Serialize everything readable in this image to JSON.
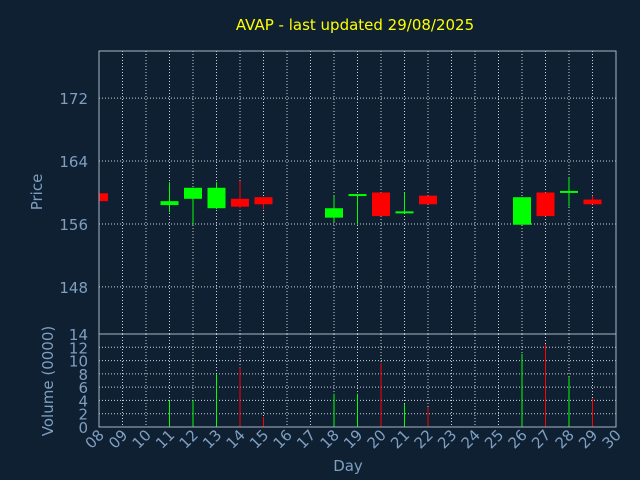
{
  "title": "AVAP - last updated 29/08/2025",
  "colors": {
    "background": "#0f2033",
    "title": "#ffff00",
    "axis_text": "#7f9fbf",
    "frame": "#aab4c0",
    "grid": "#ffffff",
    "up": "#00ff00",
    "down": "#ff0000"
  },
  "chart_data": [
    {
      "type": "candlestick",
      "ylabel": "Price",
      "ylim": [
        142,
        178
      ],
      "yticks": [
        "148",
        "156",
        "164",
        "172"
      ],
      "x_values": [
        8,
        9,
        10,
        11,
        12,
        13,
        14,
        15,
        16,
        17,
        18,
        19,
        20,
        21,
        22,
        23,
        24,
        25,
        26,
        27,
        28,
        29,
        30
      ],
      "grid": true,
      "candles": [
        {
          "day": 8,
          "open": 159.9,
          "close": 158.9,
          "high": 159.9,
          "low": 158.9
        },
        {
          "day": 11,
          "open": 158.4,
          "close": 158.9,
          "high": 161.3,
          "low": 157.5
        },
        {
          "day": 12,
          "open": 159.2,
          "close": 160.6,
          "high": 160.6,
          "low": 155.9
        },
        {
          "day": 13,
          "open": 158.0,
          "close": 160.6,
          "high": 161.3,
          "low": 157.9
        },
        {
          "day": 14,
          "open": 159.2,
          "close": 158.2,
          "high": 161.5,
          "low": 158.0
        },
        {
          "day": 15,
          "open": 159.4,
          "close": 158.5,
          "high": 159.4,
          "low": 157.9
        },
        {
          "day": 18,
          "open": 156.8,
          "close": 158.0,
          "high": 159.6,
          "low": 156.2
        },
        {
          "day": 19,
          "open": 159.6,
          "close": 159.8,
          "high": 159.8,
          "low": 155.9
        },
        {
          "day": 20,
          "open": 160.0,
          "close": 157.0,
          "high": 160.0,
          "low": 157.0
        },
        {
          "day": 21,
          "open": 157.4,
          "close": 157.6,
          "high": 160.0,
          "low": 157.4
        },
        {
          "day": 22,
          "open": 159.6,
          "close": 158.5,
          "high": 159.6,
          "low": 158.5
        },
        {
          "day": 26,
          "open": 155.9,
          "close": 159.4,
          "high": 159.4,
          "low": 155.9
        },
        {
          "day": 27,
          "open": 160.0,
          "close": 157.0,
          "high": 160.0,
          "low": 157.0
        },
        {
          "day": 28,
          "open": 160.0,
          "close": 160.2,
          "high": 161.9,
          "low": 158.2
        },
        {
          "day": 29,
          "open": 159.1,
          "close": 158.5,
          "high": 159.6,
          "low": 158.5
        }
      ]
    },
    {
      "type": "bar",
      "ylabel": "Volume (0000)",
      "ylim": [
        0,
        14
      ],
      "yticks": [
        "0",
        "2",
        "4",
        "6",
        "8",
        "10",
        "12",
        "14"
      ],
      "xlabel": "Day",
      "xticks": [
        "08",
        "09",
        "10",
        "11",
        "12",
        "13",
        "14",
        "15",
        "16",
        "17",
        "18",
        "19",
        "20",
        "21",
        "22",
        "23",
        "24",
        "25",
        "26",
        "27",
        "28",
        "29",
        "30"
      ],
      "grid": true,
      "bars": [
        {
          "day": 8,
          "value": 1.0,
          "dir": "down"
        },
        {
          "day": 11,
          "value": 4.0,
          "dir": "up"
        },
        {
          "day": 12,
          "value": 4.0,
          "dir": "up"
        },
        {
          "day": 13,
          "value": 8.0,
          "dir": "up"
        },
        {
          "day": 14,
          "value": 9.0,
          "dir": "down"
        },
        {
          "day": 15,
          "value": 1.5,
          "dir": "down"
        },
        {
          "day": 18,
          "value": 5.0,
          "dir": "up"
        },
        {
          "day": 19,
          "value": 5.0,
          "dir": "up"
        },
        {
          "day": 20,
          "value": 9.6,
          "dir": "down"
        },
        {
          "day": 21,
          "value": 3.5,
          "dir": "up"
        },
        {
          "day": 22,
          "value": 3.0,
          "dir": "down"
        },
        {
          "day": 26,
          "value": 11.0,
          "dir": "up"
        },
        {
          "day": 27,
          "value": 12.5,
          "dir": "down"
        },
        {
          "day": 28,
          "value": 7.5,
          "dir": "up"
        },
        {
          "day": 29,
          "value": 4.3,
          "dir": "down"
        }
      ]
    }
  ]
}
